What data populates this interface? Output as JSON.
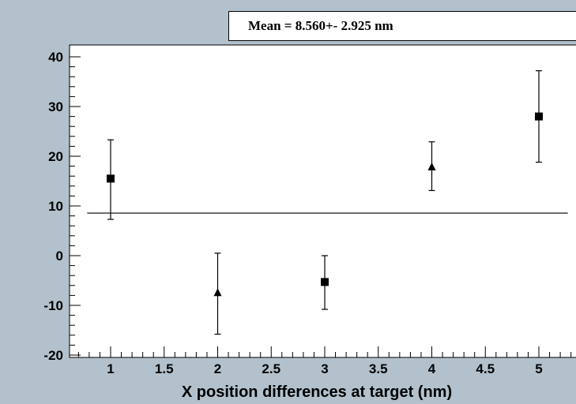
{
  "stats_box": {
    "text": "Mean = 8.560+- 2.925 nm"
  },
  "chart_data": {
    "type": "scatter",
    "title": "",
    "xlabel": "X position differences at target (nm)",
    "ylabel": "",
    "xlim": [
      0.7,
      5.45
    ],
    "ylim": [
      -20,
      42
    ],
    "x_ticks": [
      "1",
      "1.5",
      "2",
      "2.5",
      "3",
      "3.5",
      "4",
      "4.5",
      "5"
    ],
    "y_ticks": [
      "-20",
      "-10",
      "0",
      "10",
      "20",
      "30",
      "40"
    ],
    "grid": false,
    "series": [
      {
        "marker": "square",
        "points": [
          {
            "x": 1,
            "y": 15.5,
            "err_low": 7.3,
            "err_high": 23.3
          },
          {
            "x": 3,
            "y": -5.3,
            "err_low": -10.8,
            "err_high": 0
          },
          {
            "x": 5,
            "y": 28.0,
            "err_low": 18.8,
            "err_high": 37.2
          }
        ]
      },
      {
        "marker": "triangle",
        "points": [
          {
            "x": 2,
            "y": -7.5,
            "err_low": -15.8,
            "err_high": 0.5
          },
          {
            "x": 4,
            "y": 17.8,
            "err_low": 13.1,
            "err_high": 22.9
          }
        ]
      }
    ],
    "mean_line": {
      "y": 8.56,
      "x_start": 0.7,
      "x_end": 5.3
    },
    "colors": {
      "background": "#b3c1cc",
      "plot_area": "#ffffff",
      "ink": "#000000"
    }
  }
}
